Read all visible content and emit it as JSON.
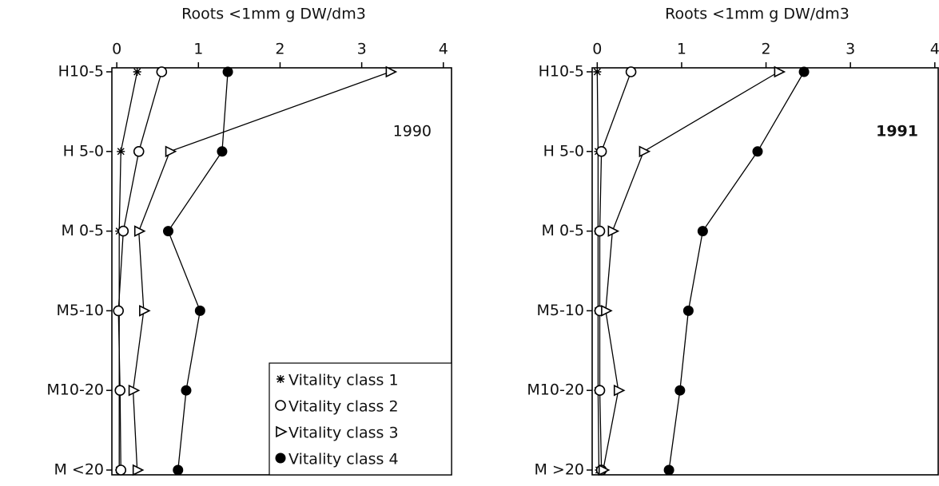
{
  "chart_data": [
    {
      "type": "line",
      "title": "Roots <1mm g DW/dm3",
      "annotation": "1990",
      "categories": [
        "H10-5",
        "H 5-0",
        "M 0-5",
        "M5-10",
        "M10-20",
        "M <20"
      ],
      "xlim": [
        -0.06,
        4.1
      ],
      "xticks": [
        0,
        1,
        2,
        3,
        4
      ],
      "legend": "lower right",
      "series": [
        {
          "name": "Vitality class 1",
          "marker": "star",
          "color": "#000000",
          "values": [
            0.25,
            0.05,
            0.03,
            0.03,
            0.03,
            0.03
          ]
        },
        {
          "name": "Vitality class 2",
          "marker": "circle",
          "color": "#000000",
          "values": [
            0.55,
            0.27,
            0.08,
            0.02,
            0.04,
            0.05
          ]
        },
        {
          "name": "Vitality class 3",
          "marker": "triangle",
          "color": "#000000",
          "values": [
            3.35,
            0.65,
            0.27,
            0.33,
            0.2,
            0.25
          ]
        },
        {
          "name": "Vitality class 4",
          "marker": "dot",
          "color": "#000000",
          "values": [
            1.36,
            1.29,
            0.63,
            1.02,
            0.85,
            0.75
          ]
        }
      ]
    },
    {
      "type": "line",
      "title": "Roots <1mm g DW/dm3",
      "annotation": "1991",
      "categories": [
        "H10-5",
        "H 5-0",
        "M 0-5",
        "M5-10",
        "M10-20",
        "M >20"
      ],
      "xlim": [
        -0.06,
        4.04
      ],
      "xticks": [
        0,
        1,
        2,
        3,
        4
      ],
      "series": [
        {
          "marker": "star",
          "color": "#000000",
          "values": [
            0,
            0.01,
            0.01,
            0.01,
            0.01,
            0.02
          ]
        },
        {
          "marker": "circle",
          "color": "#000000",
          "values": [
            0.4,
            0.05,
            0.03,
            0.03,
            0.03,
            0.05
          ]
        },
        {
          "marker": "triangle",
          "color": "#000000",
          "values": [
            2.15,
            0.55,
            0.18,
            0.1,
            0.25,
            0.07
          ]
        },
        {
          "marker": "dot",
          "color": "#000000",
          "values": [
            2.45,
            1.9,
            1.25,
            1.08,
            0.98,
            0.85
          ]
        }
      ]
    }
  ]
}
